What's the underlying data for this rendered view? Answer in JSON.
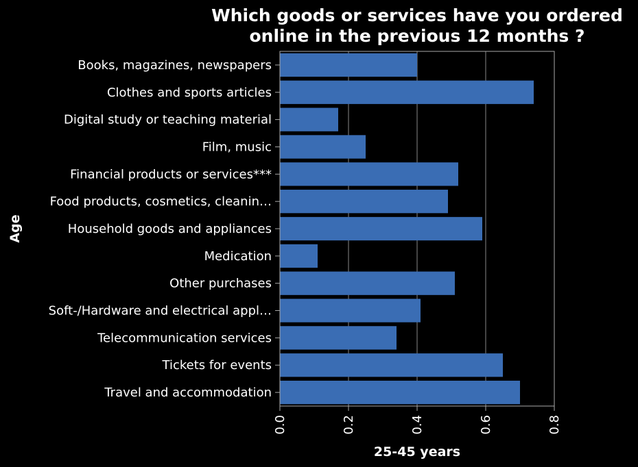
{
  "chart_data": {
    "type": "bar",
    "orientation": "horizontal",
    "title": [
      "Which goods or services have you ordered",
      "online in the previous 12 months ?"
    ],
    "xlabel": "25-45 years",
    "ylabel": "Age",
    "xlim": [
      0,
      0.8
    ],
    "xticks": [
      "0.0",
      "0.2",
      "0.4",
      "0.6",
      "0.8"
    ],
    "grid": true,
    "categories": [
      "Books, magazines, newspapers",
      "Clothes and sports articles",
      "Digital study or teaching material",
      "Film, music",
      "Financial products or services***",
      "Food products, cosmetics, cleanin…",
      "Household goods and appliances",
      "Medication",
      "Other purchases",
      "Soft-/Hardware and electrical appl…",
      "Telecommunication services",
      "Tickets for events",
      "Travel and accommodation"
    ],
    "values": [
      0.4,
      0.74,
      0.17,
      0.25,
      0.52,
      0.49,
      0.59,
      0.11,
      0.51,
      0.41,
      0.34,
      0.65,
      0.7
    ],
    "colors": {
      "background": "#000000",
      "bar": "#3a6db4",
      "text": "#ffffff",
      "axis": "#aaaaaa",
      "grid": "#888888"
    }
  }
}
